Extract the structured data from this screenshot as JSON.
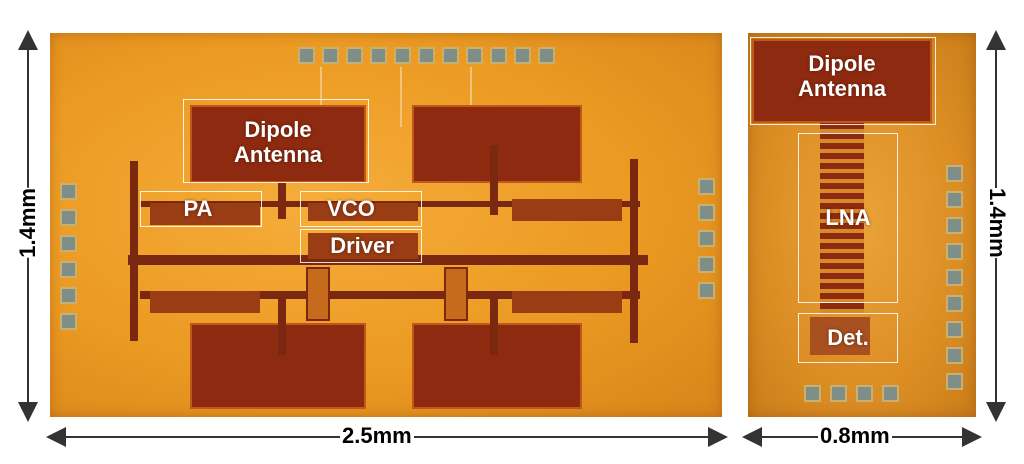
{
  "labels": {
    "tx_antenna": "Dipole\nAntenna",
    "pa": "PA",
    "vco": "VCO",
    "driver": "Driver",
    "rx_antenna": "Dipole\nAntenna",
    "lna": "LNA",
    "det": "Det."
  },
  "dimensions": {
    "tx_height": "1.4mm",
    "tx_width": "2.5mm",
    "rx_height": "1.4mm",
    "rx_width": "0.8mm"
  }
}
